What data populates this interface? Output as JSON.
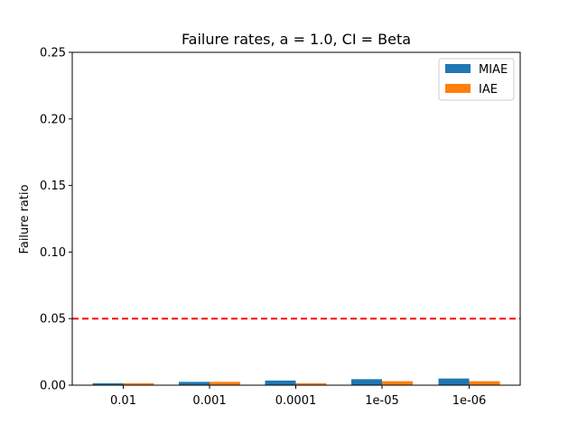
{
  "chart_data": {
    "type": "bar",
    "title": "Failure rates, a = 1.0, CI = Beta",
    "xlabel": "",
    "ylabel": "Failure ratio",
    "categories": [
      "0.01",
      "0.001",
      "0.0001",
      "1e-05",
      "1e-06"
    ],
    "series": [
      {
        "name": "MIAE",
        "color": "#1f77b4",
        "values": [
          0.0015,
          0.0025,
          0.0035,
          0.0045,
          0.005
        ]
      },
      {
        "name": "IAE",
        "color": "#ff7f0e",
        "values": [
          0.0015,
          0.0025,
          0.0015,
          0.003,
          0.003
        ]
      }
    ],
    "ylim": [
      0,
      0.25
    ],
    "yticks": [
      "0.00",
      "0.05",
      "0.10",
      "0.15",
      "0.20",
      "0.25"
    ],
    "ytick_values": [
      0,
      0.05,
      0.1,
      0.15,
      0.2,
      0.25
    ],
    "reference_line": {
      "y": 0.05,
      "color": "#ff0000",
      "style": "dashed"
    },
    "legend": "top-right",
    "grid": false
  }
}
